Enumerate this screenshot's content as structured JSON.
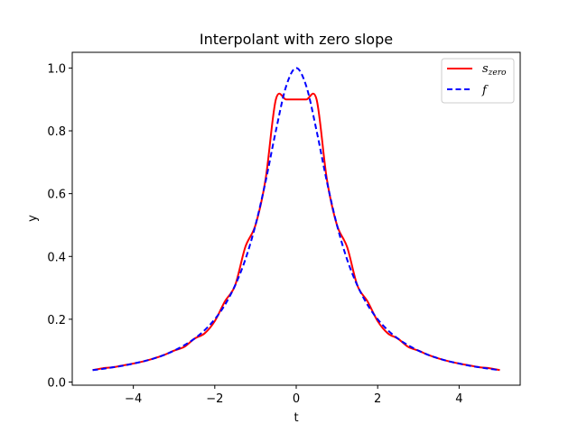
{
  "chart_data": {
    "type": "line",
    "title": "Interpolant with zero slope",
    "xlabel": "t",
    "ylabel": "y",
    "xlim": [
      -5.5,
      5.5
    ],
    "ylim": [
      -0.01,
      1.05
    ],
    "xticks": [
      -4,
      -2,
      0,
      2,
      4
    ],
    "xtick_labels": [
      "−4",
      "−2",
      "0",
      "2",
      "4"
    ],
    "yticks": [
      0.0,
      0.2,
      0.4,
      0.6,
      0.8,
      1.0
    ],
    "ytick_labels": [
      "0.0",
      "0.2",
      "0.4",
      "0.6",
      "0.8",
      "1.0"
    ],
    "grid": false,
    "legend_position": "top-right",
    "series": [
      {
        "name": "s",
        "name_subscript": "zero",
        "color": "#ff0000",
        "style": "solid",
        "x": [
          -5.0,
          -4.75,
          -4.5,
          -4.25,
          -4.0,
          -3.75,
          -3.5,
          -3.25,
          -3.0,
          -2.75,
          -2.5,
          -2.25,
          -2.0,
          -1.75,
          -1.5,
          -1.25,
          -1.0,
          -0.75,
          -0.5,
          -0.25,
          0.0,
          0.25,
          0.5,
          0.75,
          1.0,
          1.25,
          1.5,
          1.75,
          2.0,
          2.25,
          2.5,
          2.75,
          3.0,
          3.25,
          3.5,
          3.75,
          4.0,
          4.25,
          4.5,
          4.75,
          5.0
        ],
        "values": [
          0.038,
          0.044,
          0.047,
          0.053,
          0.059,
          0.066,
          0.075,
          0.086,
          0.1,
          0.112,
          0.138,
          0.155,
          0.194,
          0.257,
          0.308,
          0.43,
          0.5,
          0.648,
          0.9,
          0.9,
          0.9,
          0.9,
          0.9,
          0.648,
          0.5,
          0.43,
          0.308,
          0.257,
          0.194,
          0.155,
          0.138,
          0.112,
          0.1,
          0.086,
          0.075,
          0.066,
          0.059,
          0.053,
          0.047,
          0.044,
          0.038
        ]
      },
      {
        "name": "f",
        "color": "#0000ff",
        "style": "dashed",
        "x": [
          -5.0,
          -4.75,
          -4.5,
          -4.25,
          -4.0,
          -3.75,
          -3.5,
          -3.25,
          -3.0,
          -2.75,
          -2.5,
          -2.25,
          -2.0,
          -1.75,
          -1.5,
          -1.25,
          -1.0,
          -0.75,
          -0.5,
          -0.25,
          0.0,
          0.25,
          0.5,
          0.75,
          1.0,
          1.25,
          1.5,
          1.75,
          2.0,
          2.25,
          2.5,
          2.75,
          3.0,
          3.25,
          3.5,
          3.75,
          4.0,
          4.25,
          4.5,
          4.75,
          5.0
        ],
        "values": [
          0.038,
          0.042,
          0.047,
          0.052,
          0.059,
          0.066,
          0.075,
          0.086,
          0.1,
          0.117,
          0.138,
          0.165,
          0.2,
          0.246,
          0.308,
          0.39,
          0.5,
          0.64,
          0.8,
          0.941,
          1.0,
          0.941,
          0.8,
          0.64,
          0.5,
          0.39,
          0.308,
          0.246,
          0.2,
          0.165,
          0.138,
          0.117,
          0.1,
          0.086,
          0.075,
          0.066,
          0.059,
          0.052,
          0.047,
          0.042,
          0.038
        ]
      }
    ]
  }
}
